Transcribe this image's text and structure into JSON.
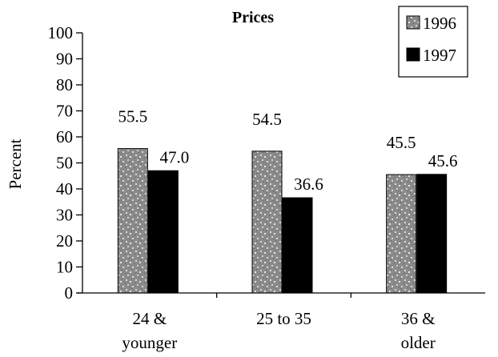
{
  "chart_data": {
    "type": "bar",
    "title": "Prices",
    "xlabel": "",
    "ylabel": "Percent",
    "ylim": [
      0,
      100
    ],
    "yticks": [
      0,
      10,
      20,
      30,
      40,
      50,
      60,
      70,
      80,
      90,
      100
    ],
    "categories": [
      [
        "24 &",
        "younger"
      ],
      [
        "25 to 35"
      ],
      [
        "36 &",
        "older"
      ]
    ],
    "series": [
      {
        "name": "1996",
        "values": [
          55.5,
          54.5,
          45.5
        ],
        "labels": [
          "55.5",
          "54.5",
          "45.5"
        ],
        "color": "#9a9a9a",
        "pattern": "speckled"
      },
      {
        "name": "1997",
        "values": [
          47.0,
          36.6,
          45.6
        ],
        "labels": [
          "47.0",
          "36.6",
          "45.6"
        ],
        "color": "#000000",
        "pattern": "solid"
      }
    ],
    "grid": false,
    "legend_position": "top-right"
  }
}
